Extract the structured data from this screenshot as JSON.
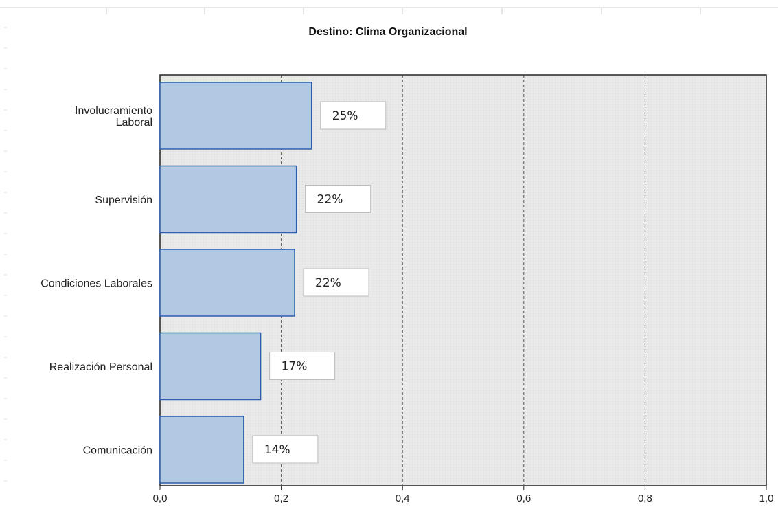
{
  "chart_data": {
    "type": "bar",
    "orientation": "horizontal",
    "title": "Destino: Clima Organizacional",
    "xlabel": "",
    "ylabel": "",
    "categories": [
      "Involucramiento Laboral",
      "Supervisión",
      "Condiciones Laborales",
      "Realización Personal",
      "Comunicación"
    ],
    "category_display": [
      [
        "Involucramiento",
        "Laboral"
      ],
      [
        "Supervisión"
      ],
      [
        "Condiciones Laborales"
      ],
      [
        "Realización Personal"
      ],
      [
        "Comunicación"
      ]
    ],
    "values": [
      0.25,
      0.225,
      0.222,
      0.166,
      0.138
    ],
    "data_labels": [
      "25%",
      "22%",
      "22%",
      "17%",
      "14%"
    ],
    "xlim": [
      0,
      1
    ],
    "xticks": [
      0,
      0.2,
      0.4,
      0.6,
      0.8,
      1.0
    ],
    "xtick_labels": [
      "0,0",
      "0,2",
      "0,4",
      "0,6",
      "0,8",
      "1,0"
    ],
    "grid": "vertical dashed",
    "legend": "none",
    "colors": {
      "bar_fill": "#b2c9e4",
      "bar_stroke": "#2b5fae",
      "plot_background": "#e8e8e8",
      "gridline": "#555555",
      "label_box_fill": "#ffffff",
      "label_box_stroke": "#bdbdbd"
    }
  }
}
